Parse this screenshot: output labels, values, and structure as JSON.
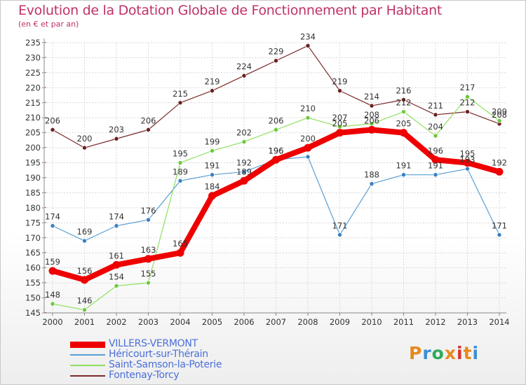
{
  "header": {
    "title": "Evolution de la Dotation Globale de Fonctionnement par Habitant",
    "subtitle": "(en € et par an)"
  },
  "logo": {
    "text": "Proxiti",
    "colors": [
      "#e8891c",
      "#3b8fd6",
      "#2eab5a",
      "#e8891c",
      "#d6342e",
      "#e8891c",
      "#3b8fd6"
    ]
  },
  "chart_data": {
    "type": "line",
    "title": "Evolution de la Dotation Globale de Fonctionnement par Habitant",
    "subtitle": "(en € et par an)",
    "xlabel": "",
    "ylabel": "",
    "ylim": [
      145,
      235
    ],
    "ytick_step": 5,
    "grid": true,
    "legend_position": "bottom-left",
    "categories": [
      "2000",
      "2001",
      "2002",
      "2003",
      "2004",
      "2005",
      "2006",
      "2007",
      "2008",
      "2009",
      "2010",
      "2011",
      "2012",
      "2013",
      "2014"
    ],
    "series": [
      {
        "name": "Fontenay-Torcy",
        "color": "#7a2a2a",
        "marker": "#6b1f1f",
        "width": 1.2,
        "r": 3,
        "values": [
          206,
          200,
          203,
          206,
          215,
          219,
          224,
          229,
          234,
          219,
          214,
          216,
          211,
          212,
          208
        ],
        "labels": [
          "206",
          "200",
          "203",
          "206",
          "215",
          "219",
          "224",
          "229",
          "234",
          "219",
          "214",
          "216",
          "211",
          "212",
          "208"
        ]
      },
      {
        "name": "Héricourt-sur-Thérain",
        "color": "#5a9fd4",
        "marker": "#3a7fc0",
        "width": 1.2,
        "r": 3,
        "values": [
          174,
          169,
          174,
          176,
          189,
          191,
          192,
          196,
          197,
          171,
          188,
          191,
          191,
          193,
          171
        ],
        "labels": [
          "174",
          "169",
          "174",
          "176",
          "189",
          "191",
          "192",
          "196",
          "",
          "171",
          "188",
          "191",
          "191",
          "193",
          "171"
        ]
      },
      {
        "name": "Saint-Samson-la-Poterie",
        "color": "#8fe060",
        "marker": "#6cc83a",
        "width": 1.2,
        "r": 3,
        "values": [
          148,
          146,
          154,
          155,
          195,
          199,
          202,
          206,
          210,
          207,
          208,
          212,
          204,
          217,
          209
        ],
        "labels": [
          "148",
          "146",
          "154",
          "155",
          "195",
          "199",
          "202",
          "206",
          "210",
          "207",
          "208",
          "212",
          "204",
          "217",
          "209"
        ]
      },
      {
        "name": "VILLERS-VERMONT",
        "color": "#ee0000",
        "marker": "#ee0000",
        "width": 8,
        "r": 5.5,
        "values": [
          159,
          156,
          161,
          163,
          165,
          184,
          189,
          196,
          200,
          205,
          206,
          205,
          196,
          195,
          192
        ],
        "labels": [
          "159",
          "156",
          "161",
          "163",
          "165",
          "184",
          "189",
          "196",
          "200",
          "205",
          "206",
          "205",
          "196",
          "195",
          "192"
        ]
      }
    ],
    "legend_order": [
      "VILLERS-VERMONT",
      "Héricourt-sur-Thérain",
      "Saint-Samson-la-Poterie",
      "Fontenay-Torcy"
    ]
  }
}
